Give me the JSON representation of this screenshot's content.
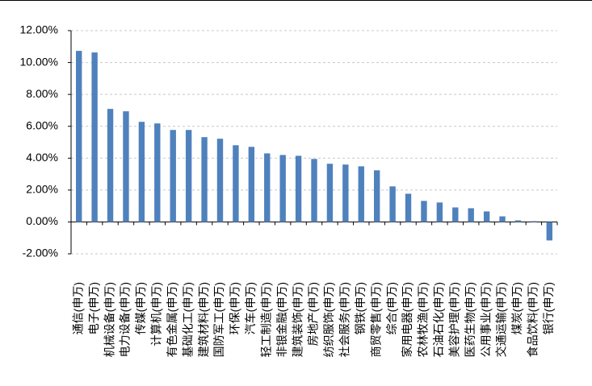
{
  "chart_data": {
    "type": "bar",
    "categories": [
      "通信(申万)",
      "电子(申万)",
      "机械设备(申万)",
      "电力设备(申万)",
      "传媒(申万)",
      "计算机(申万)",
      "有色金属(申万)",
      "基础化工(申万)",
      "建筑材料(申万)",
      "国防军工(申万)",
      "环保(申万)",
      "汽车(申万)",
      "轻工制造(申万)",
      "非银金融(申万)",
      "建筑装饰(申万)",
      "房地产(申万)",
      "纺织服饰(申万)",
      "社会服务(申万)",
      "钢铁(申万)",
      "商贸零售(申万)",
      "综合(申万)",
      "家用电器(申万)",
      "农林牧渔(申万)",
      "石油石化(申万)",
      "美容护理(申万)",
      "医药生物(申万)",
      "公用事业(申万)",
      "交通运输(申万)",
      "煤炭(申万)",
      "食品饮料(申万)",
      "银行(申万)"
    ],
    "values": [
      10.73,
      10.63,
      7.09,
      6.94,
      6.28,
      6.18,
      5.77,
      5.77,
      5.32,
      5.22,
      4.81,
      4.71,
      4.3,
      4.2,
      4.15,
      3.95,
      3.65,
      3.6,
      3.49,
      3.24,
      2.23,
      1.77,
      1.32,
      1.22,
      0.91,
      0.86,
      0.66,
      0.35,
      0.1,
      0.05,
      -1.16
    ],
    "color": "#4f81bd",
    "ylim": [
      -2,
      12
    ],
    "yticks": [
      {
        "value": -2,
        "label": "-2.00%"
      },
      {
        "value": 0,
        "label": "0.00%"
      },
      {
        "value": 2,
        "label": "2.00%"
      },
      {
        "value": 4,
        "label": "4.00%"
      },
      {
        "value": 6,
        "label": "6.00%"
      },
      {
        "value": 8,
        "label": "8.00%"
      },
      {
        "value": 10,
        "label": "10.00%"
      },
      {
        "value": 12,
        "label": "12.00%"
      }
    ],
    "grid": true
  }
}
